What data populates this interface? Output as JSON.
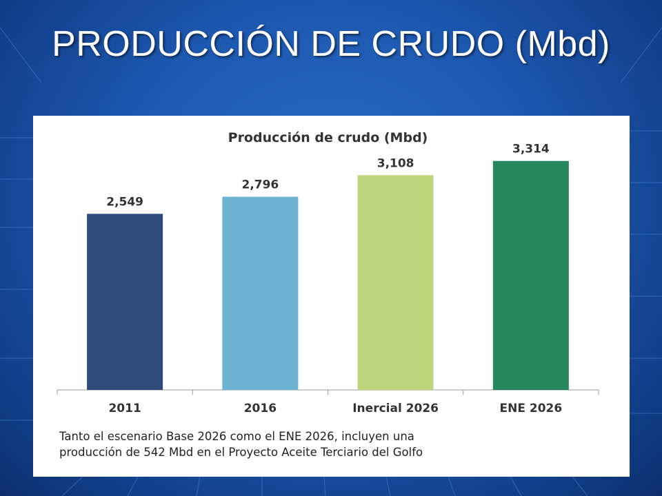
{
  "slide": {
    "title": "PRODUCCIÓN DE CRUDO  (Mbd)"
  },
  "note": {
    "line1": "Tanto el escenario Base 2026 como el ENE 2026, incluyen una",
    "line2": "producción de 542 Mbd en el Proyecto Aceite Terciario del Golfo"
  },
  "colors": {
    "background": "#1d58b0",
    "title_text": "#ffffff",
    "bar_2011": "#2e4b7b",
    "bar_2016": "#6bb3d0",
    "bar_inercial": "#bdd67c",
    "bar_ene": "#27875c"
  },
  "chart_data": {
    "type": "bar",
    "title": "Producción de crudo (Mbd)",
    "categories": [
      "2011",
      "2016",
      "Inercial 2026",
      "ENE 2026"
    ],
    "values": [
      2549,
      2796,
      3108,
      3314
    ],
    "value_labels": [
      "2,549",
      "2,796",
      "3,108",
      "3,314"
    ],
    "bar_colors": [
      "#2e4b7b",
      "#6bb3d0",
      "#bdd67c",
      "#27875c"
    ],
    "xlabel": "",
    "ylabel": "",
    "ylim": [
      0,
      3500
    ],
    "grid": false,
    "legend": "none"
  }
}
